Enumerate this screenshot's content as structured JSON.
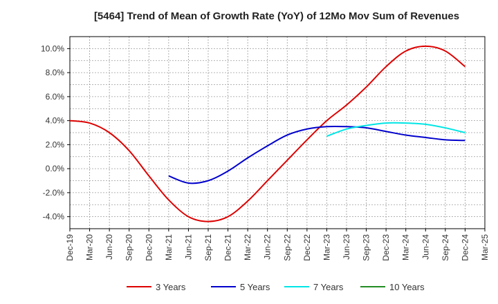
{
  "chart_data": {
    "type": "line",
    "title": "[5464]  Trend of Mean of Growth Rate (YoY) of 12Mo Mov Sum of Revenues",
    "xlabel": "",
    "ylabel": "",
    "ylim": [
      -5.0,
      11.0
    ],
    "y_ticks": [
      -4.0,
      -2.0,
      0.0,
      2.0,
      4.0,
      6.0,
      8.0,
      10.0
    ],
    "y_tick_labels": [
      "-4.0%",
      "-2.0%",
      "0.0%",
      "2.0%",
      "4.0%",
      "6.0%",
      "8.0%",
      "10.0%"
    ],
    "grid": true,
    "legend_position": "bottom",
    "x_tick_labels": [
      "Dec-19",
      "Mar-20",
      "Jun-20",
      "Sep-20",
      "Dec-20",
      "Mar-21",
      "Jun-21",
      "Sep-21",
      "Dec-21",
      "Mar-22",
      "Jun-22",
      "Sep-22",
      "Dec-22",
      "Mar-23",
      "Jun-23",
      "Sep-23",
      "Dec-23",
      "Mar-24",
      "Jun-24",
      "Sep-24",
      "Dec-24",
      "Mar-25"
    ],
    "series": [
      {
        "name": "3 Years",
        "color": "#dd0000",
        "values": [
          4.0,
          3.8,
          3.0,
          1.5,
          -0.6,
          -2.6,
          -4.0,
          -4.4,
          -4.0,
          -2.7,
          -1.0,
          0.7,
          2.4,
          4.0,
          5.3,
          6.8,
          8.5,
          9.8,
          10.2,
          9.8,
          8.5,
          null
        ]
      },
      {
        "name": "5 Years",
        "color": "#0000cc",
        "values": [
          null,
          null,
          null,
          null,
          null,
          -0.6,
          -1.2,
          -1.0,
          -0.2,
          0.9,
          1.9,
          2.8,
          3.3,
          3.5,
          3.5,
          3.4,
          3.1,
          2.8,
          2.6,
          2.4,
          2.35,
          null
        ]
      },
      {
        "name": "7 Years",
        "color": "#00e5e5",
        "values": [
          null,
          null,
          null,
          null,
          null,
          null,
          null,
          null,
          null,
          null,
          null,
          null,
          null,
          2.7,
          3.3,
          3.6,
          3.8,
          3.8,
          3.7,
          3.4,
          3.0,
          null
        ]
      },
      {
        "name": "10 Years",
        "color": "#228b22",
        "values": [
          null,
          null,
          null,
          null,
          null,
          null,
          null,
          null,
          null,
          null,
          null,
          null,
          null,
          null,
          null,
          null,
          null,
          null,
          null,
          null,
          null,
          null
        ]
      }
    ]
  }
}
